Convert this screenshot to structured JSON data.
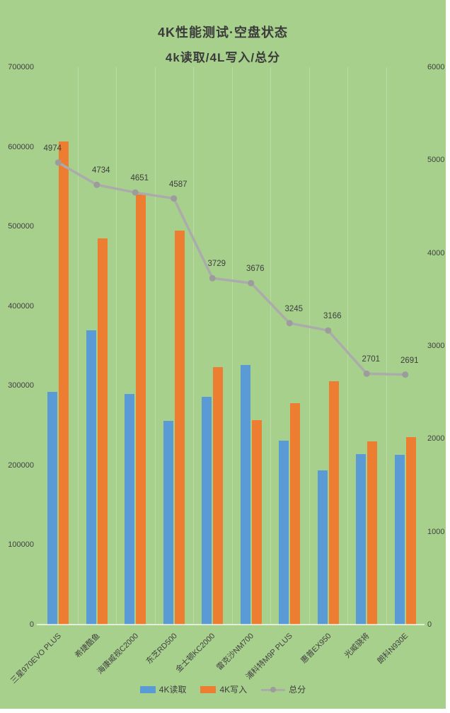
{
  "title": "4K性能测试·空盘状态",
  "subtitle": "4k读取/4L写入/总分",
  "colors": {
    "background": "#A8D08D",
    "read_bar": "#5B9BD5",
    "write_bar": "#ED7D31",
    "score_line": "#ABABAB",
    "score_marker": "#9C9C9C",
    "text": "#404040"
  },
  "chart_data": {
    "type": "bar",
    "subtype": "combo bar+line, dual axis",
    "title": "4K性能测试·空盘状态",
    "subtitle": "4k读取/4L写入/总分",
    "categories": [
      "三星970EVO PLUS",
      "希捷酷鱼",
      "海康威视C2000",
      "东芝RD500",
      "金士顿KC2000",
      "雷克沙NM700",
      "浦科特M9P PLUS",
      "惠普EX950",
      "光威骁将",
      "朗科N930E"
    ],
    "series": [
      {
        "name": "4K读取",
        "type": "bar",
        "axis": "left",
        "color": "#5B9BD5",
        "values": [
          292000,
          370000,
          290000,
          256000,
          286000,
          326000,
          231000,
          194000,
          214000,
          213000
        ]
      },
      {
        "name": "4K写入",
        "type": "bar",
        "axis": "left",
        "color": "#ED7D31",
        "values": [
          607000,
          485000,
          540000,
          495000,
          323000,
          257000,
          278000,
          306000,
          230000,
          235000
        ]
      },
      {
        "name": "总分",
        "type": "line",
        "axis": "right",
        "color": "#ABABAB",
        "values": [
          4974,
          4734,
          4651,
          4587,
          3729,
          3676,
          3245,
          3166,
          2701,
          2691
        ],
        "point_labels": [
          "4974",
          "4734",
          "4651",
          "4587",
          "3729",
          "3676",
          "3245",
          "3166",
          "2701",
          "2691"
        ]
      }
    ],
    "left_axis": {
      "min": 0,
      "max": 700000,
      "step": 100000,
      "ticks": [
        "0",
        "100000",
        "200000",
        "300000",
        "400000",
        "500000",
        "600000",
        "700000"
      ]
    },
    "right_axis": {
      "min": 0,
      "max": 6000,
      "step": 1000,
      "ticks": [
        "0",
        "1000",
        "2000",
        "3000",
        "4000",
        "5000",
        "6000"
      ]
    },
    "grid": "faint vertical category separators only",
    "legend_position": "bottom",
    "legend": [
      "4K读取",
      "4K写入",
      "总分"
    ]
  }
}
